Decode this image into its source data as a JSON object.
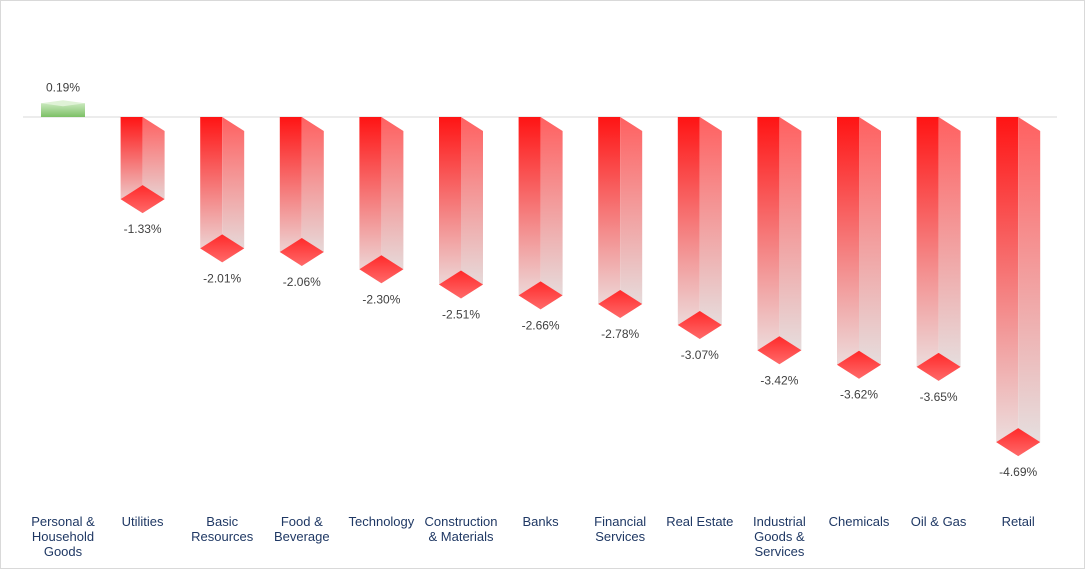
{
  "chart_data": {
    "type": "bar",
    "title": "",
    "xlabel": "",
    "ylabel": "",
    "categories": [
      [
        "Personal &",
        "Household",
        "Goods"
      ],
      [
        "Utilities"
      ],
      [
        "Basic",
        "Resources"
      ],
      [
        "Food &",
        "Beverage"
      ],
      [
        "Technology"
      ],
      [
        "Construction",
        "& Materials"
      ],
      [
        "Banks"
      ],
      [
        "Financial",
        "Services"
      ],
      [
        "Real Estate"
      ],
      [
        "Industrial",
        "Goods &",
        "Services"
      ],
      [
        "Chemicals"
      ],
      [
        "Oil & Gas"
      ],
      [
        "Retail"
      ]
    ],
    "values": [
      0.19,
      -1.33,
      -2.01,
      -2.06,
      -2.3,
      -2.51,
      -2.66,
      -2.78,
      -3.07,
      -3.42,
      -3.62,
      -3.65,
      -4.69
    ],
    "data_labels": [
      "0.19%",
      "-1.33%",
      "-2.01%",
      "-2.06%",
      "-2.30%",
      "-2.51%",
      "-2.66%",
      "-2.78%",
      "-3.07%",
      "-3.42%",
      "-3.62%",
      "-3.65%",
      "-4.69%"
    ],
    "ylim": [
      -5,
      0.5
    ],
    "grid": false,
    "legend": "none",
    "colors": {
      "negative": "#ff1a1a",
      "negative_fade": "#e8e8e8",
      "positive": "#8fcf7a",
      "baseline": "#d9d9d9",
      "category_text": "#1f3864",
      "value_text": "#404040"
    }
  }
}
